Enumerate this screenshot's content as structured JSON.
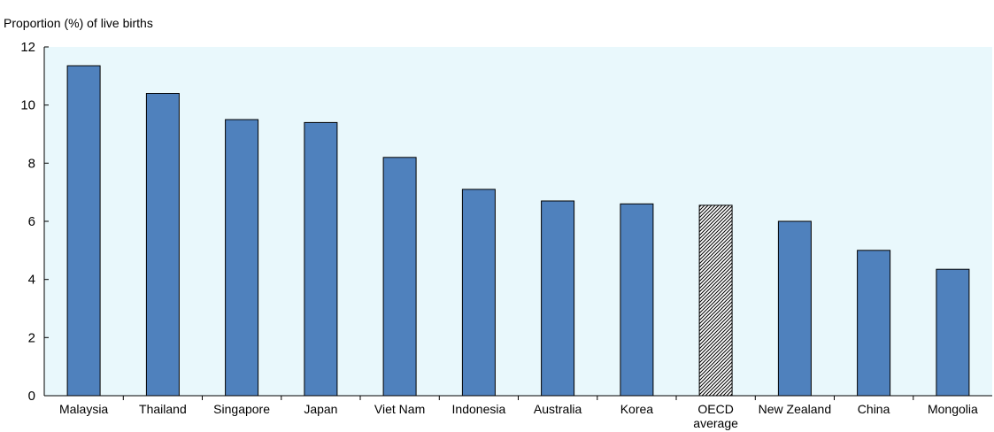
{
  "chart_data": {
    "type": "bar",
    "ylabel": "Proportion (%) of live births",
    "ylim": [
      0,
      12
    ],
    "yticks": [
      0,
      2,
      4,
      6,
      8,
      10,
      12
    ],
    "grid": false,
    "categories": [
      "Malaysia",
      "Thailand",
      "Singapore",
      "Japan",
      "Viet Nam",
      "Indonesia",
      "Australia",
      "Korea",
      "OECD average",
      "New Zealand",
      "China",
      "Mongolia"
    ],
    "category_label_lines": [
      [
        "Malaysia"
      ],
      [
        "Thailand"
      ],
      [
        "Singapore"
      ],
      [
        "Japan"
      ],
      [
        "Viet Nam"
      ],
      [
        "Indonesia"
      ],
      [
        "Australia"
      ],
      [
        "Korea"
      ],
      [
        "OECD",
        "average"
      ],
      [
        "New Zealand"
      ],
      [
        "China"
      ],
      [
        "Mongolia"
      ]
    ],
    "values": [
      11.35,
      10.4,
      9.5,
      9.4,
      8.2,
      7.1,
      6.7,
      6.6,
      6.55,
      6.0,
      5.0,
      4.35
    ],
    "highlighted_category": "OECD average",
    "colors": {
      "bar": "#4f81bd",
      "highlight_pattern": "hatched",
      "plot_background": "#e9f8fc",
      "axis": "#000000"
    }
  }
}
